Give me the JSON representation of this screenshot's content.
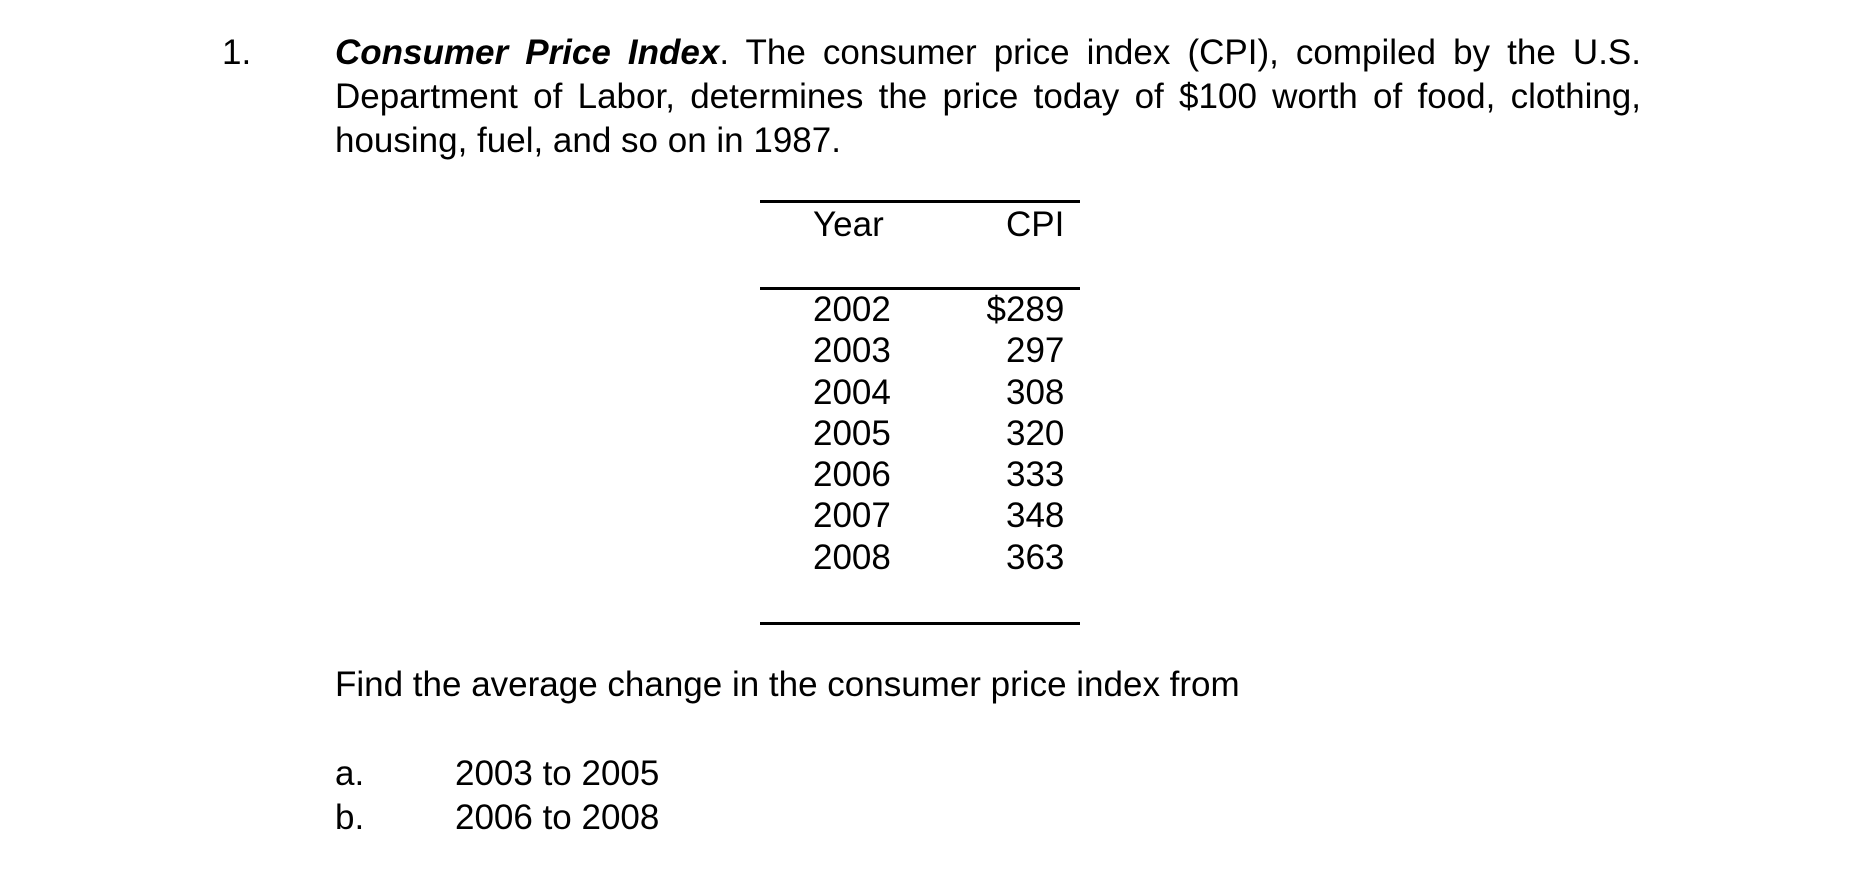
{
  "page": {
    "background_color": "#ffffff",
    "text_color": "#000000"
  },
  "problem": {
    "number": "1.",
    "title_bold_italic": "Consumer Price Index",
    "intro_line1_rest": ". The consumer price index (CPI), compiled by the U.S.",
    "intro_line2": "Department of Labor, determines the price today of $100 worth of food, clothing,",
    "intro_line3": "housing, fuel, and so on in 1987.",
    "question": "Find the average change in the consumer price index from",
    "subparts": [
      {
        "label": "a.",
        "text": "2003 to 2005"
      },
      {
        "label": "b.",
        "text": "2006 to 2008"
      }
    ]
  },
  "table": {
    "headers": {
      "year": "Year",
      "cpi": "CPI"
    },
    "rows": [
      {
        "year": "2002",
        "cpi": "$289"
      },
      {
        "year": "2003",
        "cpi": "297"
      },
      {
        "year": "2004",
        "cpi": "308"
      },
      {
        "year": "2005",
        "cpi": "320"
      },
      {
        "year": "2006",
        "cpi": "333"
      },
      {
        "year": "2007",
        "cpi": "348"
      },
      {
        "year": "2008",
        "cpi": "363"
      }
    ]
  },
  "chart_data": {
    "type": "table",
    "title": "Consumer Price Index by Year",
    "columns": [
      "Year",
      "CPI"
    ],
    "x": [
      2002,
      2003,
      2004,
      2005,
      2006,
      2007,
      2008
    ],
    "values": [
      289,
      297,
      308,
      320,
      333,
      348,
      363
    ],
    "units": "dollars (price today of $100 worth of 1987 goods)"
  }
}
